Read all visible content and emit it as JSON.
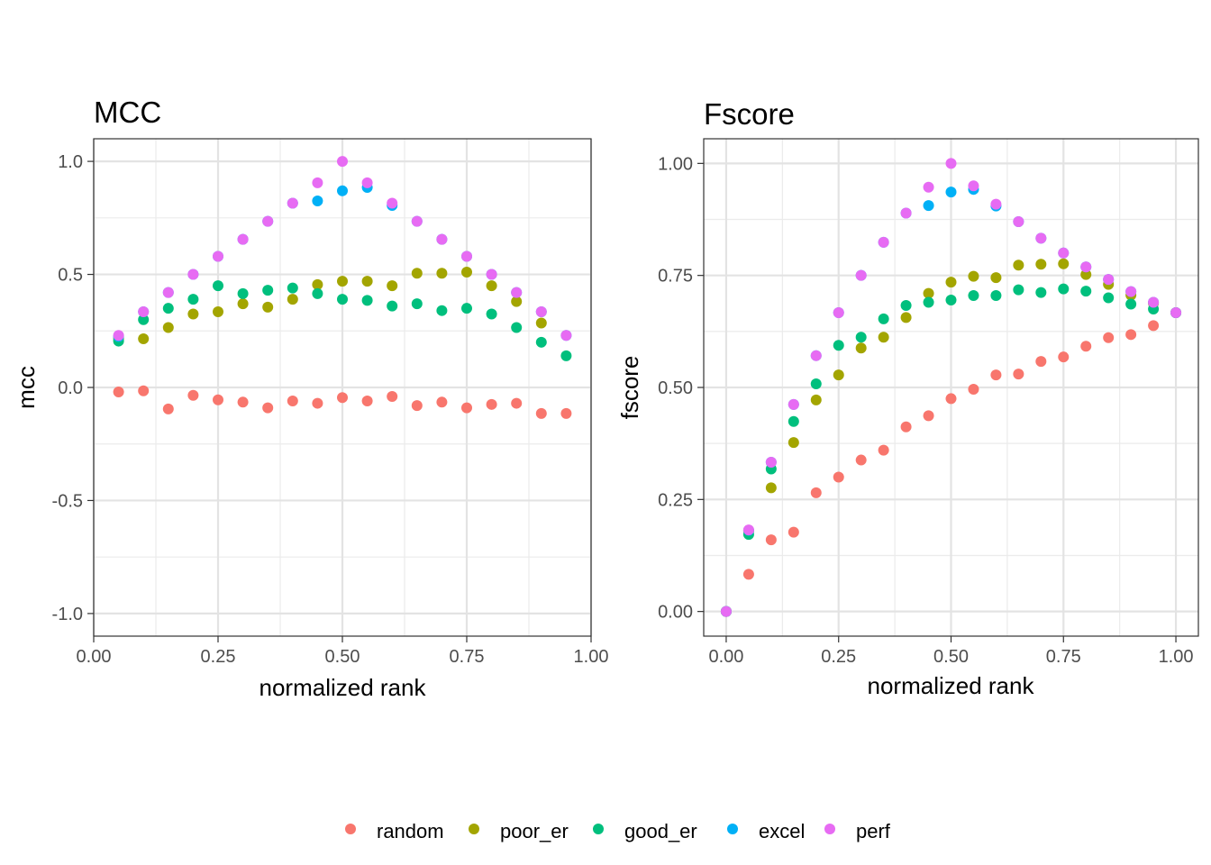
{
  "legend": {
    "position": "bottom",
    "items": [
      {
        "label": "random",
        "color": "#F8766D"
      },
      {
        "label": "poor_er",
        "color": "#A3A500"
      },
      {
        "label": "good_er",
        "color": "#00BF7D"
      },
      {
        "label": "excel",
        "color": "#00B0F6"
      },
      {
        "label": "perf",
        "color": "#E76BF3"
      }
    ]
  },
  "chart_data": [
    {
      "type": "scatter",
      "title": "MCC",
      "xlabel": "normalized rank",
      "ylabel": "mcc",
      "xlim": [
        0,
        1
      ],
      "ylim": [
        -1.1,
        1.1
      ],
      "x_ticks": [
        "0.00",
        "0.25",
        "0.50",
        "0.75",
        "1.00"
      ],
      "y_ticks": [
        "-1.0",
        "-0.5",
        "0.0",
        "0.5",
        "1.0"
      ],
      "grid": true,
      "x": [
        0.05,
        0.1,
        0.15,
        0.2,
        0.25,
        0.3,
        0.35,
        0.4,
        0.45,
        0.5,
        0.55,
        0.6,
        0.65,
        0.7,
        0.75,
        0.8,
        0.85,
        0.9,
        0.95
      ],
      "series": [
        {
          "name": "random",
          "values": [
            -0.02,
            -0.015,
            -0.095,
            -0.035,
            -0.055,
            -0.065,
            -0.09,
            -0.06,
            -0.07,
            -0.045,
            -0.06,
            -0.04,
            -0.08,
            -0.065,
            -0.09,
            -0.075,
            -0.07,
            -0.115,
            -0.115
          ]
        },
        {
          "name": "poor_er",
          "values": [
            0.215,
            0.215,
            0.265,
            0.325,
            0.335,
            0.37,
            0.355,
            0.39,
            0.455,
            0.47,
            0.47,
            0.45,
            0.505,
            0.505,
            0.51,
            0.45,
            0.38,
            0.285,
            null
          ]
        },
        {
          "name": "good_er",
          "values": [
            0.205,
            0.3,
            0.35,
            0.39,
            0.45,
            0.415,
            0.43,
            0.44,
            0.415,
            0.39,
            0.385,
            0.36,
            0.37,
            0.34,
            0.35,
            0.325,
            0.265,
            0.2,
            0.14
          ]
        },
        {
          "name": "excel",
          "values": [
            0.225,
            0.335,
            0.42,
            0.5,
            0.58,
            0.655,
            0.735,
            0.815,
            0.825,
            0.87,
            0.885,
            0.805,
            0.735,
            0.655,
            0.58,
            0.5,
            0.42,
            0.335,
            0.23
          ]
        },
        {
          "name": "perf",
          "values": [
            0.23,
            0.335,
            0.42,
            0.5,
            0.58,
            0.655,
            0.735,
            0.815,
            0.905,
            1.0,
            0.905,
            0.815,
            0.735,
            0.655,
            0.58,
            0.5,
            0.42,
            0.335,
            0.23
          ]
        }
      ]
    },
    {
      "type": "scatter",
      "title": "Fscore",
      "xlabel": "normalized rank",
      "ylabel": "fscore",
      "xlim": [
        -0.05,
        1.05
      ],
      "ylim": [
        -0.055,
        1.055
      ],
      "x_ticks": [
        "0.00",
        "0.25",
        "0.50",
        "0.75",
        "1.00"
      ],
      "y_ticks": [
        "0.00",
        "0.25",
        "0.50",
        "0.75",
        "1.00"
      ],
      "grid": true,
      "x": [
        0.0,
        0.05,
        0.1,
        0.15,
        0.2,
        0.25,
        0.3,
        0.35,
        0.4,
        0.45,
        0.5,
        0.55,
        0.6,
        0.65,
        0.7,
        0.75,
        0.8,
        0.85,
        0.9,
        0.95,
        1.0
      ],
      "series": [
        {
          "name": "random",
          "values": [
            0.0,
            0.083,
            0.16,
            0.177,
            0.265,
            0.3,
            0.338,
            0.36,
            0.412,
            0.437,
            0.475,
            0.496,
            0.528,
            0.53,
            0.558,
            0.568,
            0.592,
            0.611,
            0.618,
            0.638,
            0.667
          ]
        },
        {
          "name": "poor_er",
          "values": [
            0.0,
            0.18,
            0.276,
            0.377,
            0.472,
            0.528,
            0.588,
            0.612,
            0.656,
            0.71,
            0.735,
            0.748,
            0.745,
            0.773,
            0.775,
            0.776,
            0.752,
            0.73,
            0.706,
            0.688,
            0.667
          ]
        },
        {
          "name": "good_er",
          "values": [
            0.0,
            0.172,
            0.318,
            0.424,
            0.508,
            0.594,
            0.612,
            0.653,
            0.683,
            0.69,
            0.695,
            0.705,
            0.705,
            0.718,
            0.712,
            0.72,
            0.715,
            0.7,
            0.686,
            0.675,
            0.667
          ]
        },
        {
          "name": "excel",
          "values": [
            0.0,
            0.181,
            0.333,
            0.462,
            0.571,
            0.667,
            0.75,
            0.824,
            0.889,
            0.906,
            0.936,
            0.942,
            0.905,
            0.87,
            0.833,
            0.8,
            0.769,
            0.741,
            0.714,
            0.69,
            0.667
          ]
        },
        {
          "name": "perf",
          "values": [
            0.0,
            0.182,
            0.333,
            0.462,
            0.571,
            0.667,
            0.75,
            0.824,
            0.889,
            0.947,
            1.0,
            0.95,
            0.909,
            0.87,
            0.833,
            0.8,
            0.769,
            0.741,
            0.714,
            0.69,
            0.667
          ]
        }
      ]
    }
  ]
}
